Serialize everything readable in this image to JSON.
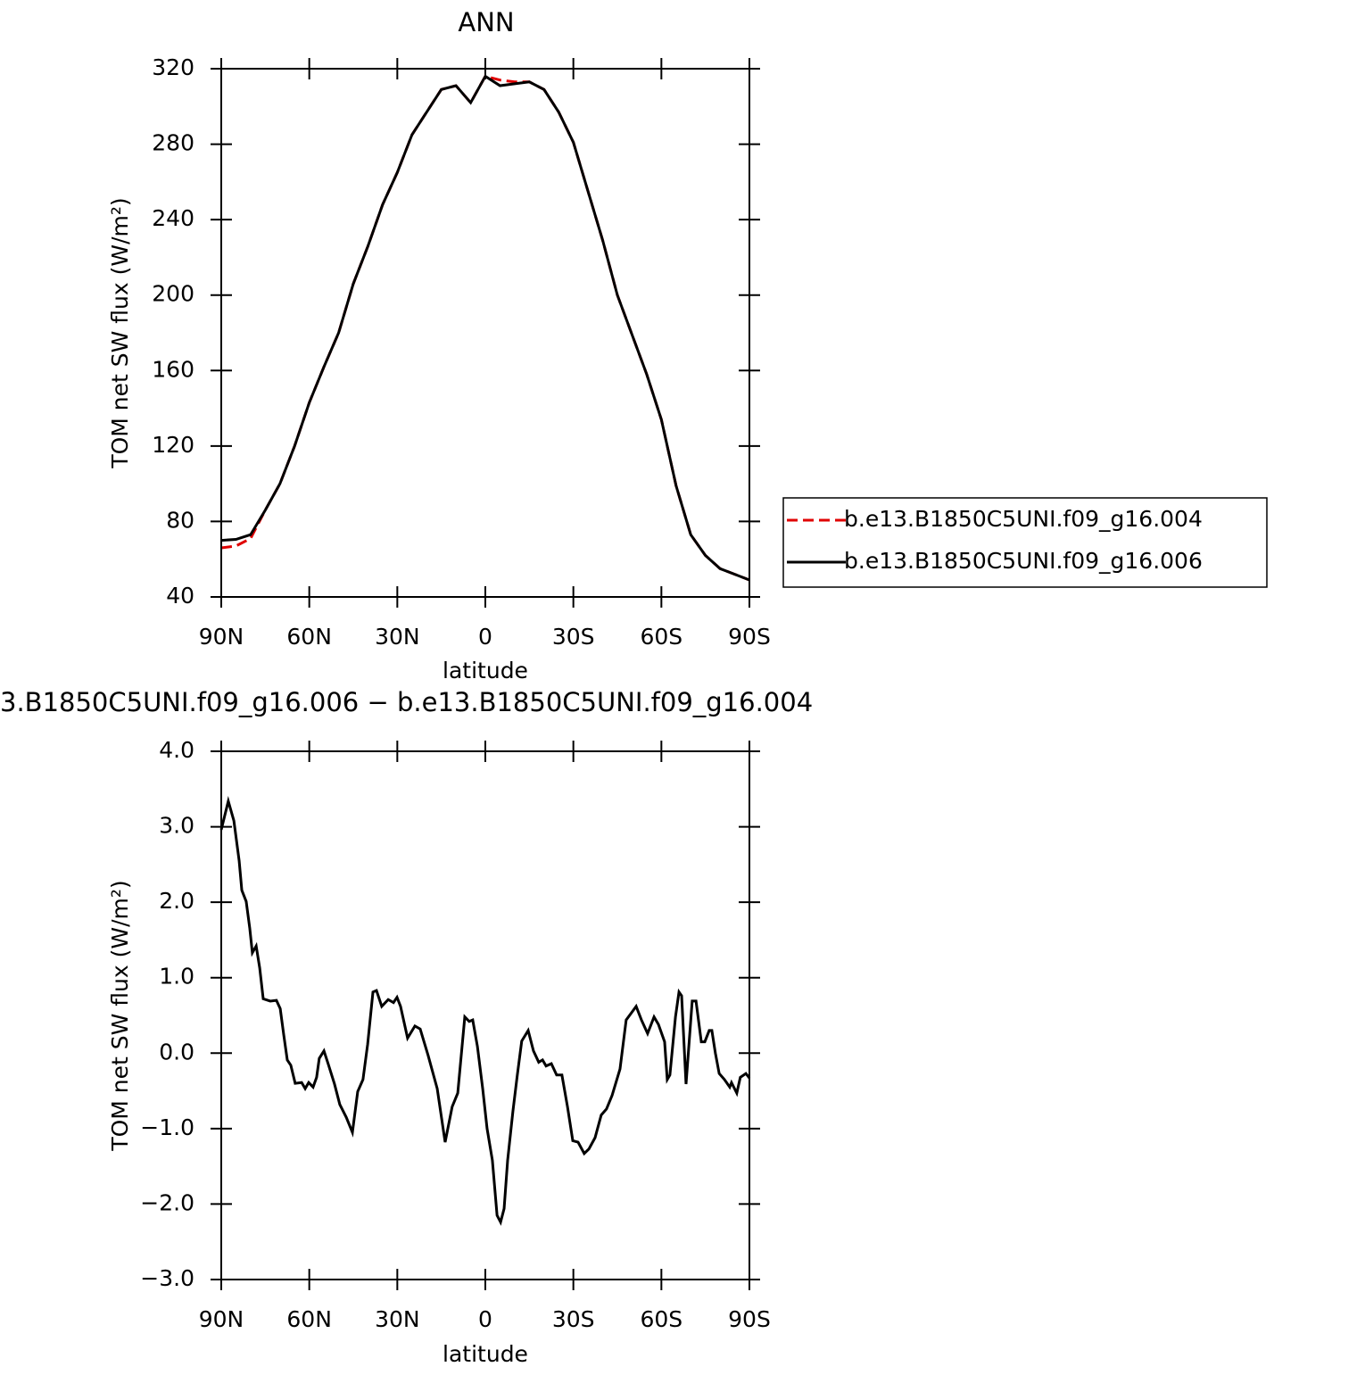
{
  "chart_data": [
    {
      "type": "line",
      "title": "ANN",
      "xlabel": "latitude",
      "ylabel": "TOM net SW flux (W/m²)",
      "xlim": [
        90,
        -90
      ],
      "xticks": [
        {
          "value": 90,
          "label": "90N"
        },
        {
          "value": 60,
          "label": "60N"
        },
        {
          "value": 30,
          "label": "30N"
        },
        0,
        {
          "value": -30,
          "label": "30S"
        },
        {
          "value": -60,
          "label": "60S"
        },
        {
          "value": -90,
          "label": "90S"
        }
      ],
      "ylim": [
        40,
        320
      ],
      "yticks": [
        40,
        80,
        120,
        160,
        200,
        240,
        280,
        320
      ],
      "legend": "right",
      "x": [
        90,
        85,
        80,
        75,
        70,
        65,
        60,
        55,
        50,
        45,
        40,
        35,
        30,
        25,
        20,
        15,
        10,
        5,
        0,
        -5,
        -10,
        -15,
        -20,
        -25,
        -30,
        -35,
        -40,
        -45,
        -50,
        -55,
        -60,
        -65,
        -70,
        -75,
        -80,
        -85,
        -90
      ],
      "series": [
        {
          "name": "b.e13.B1850C5UNI.f09_g16.004",
          "color": "#e00000",
          "line_style": "dashed",
          "values": [
            66,
            67,
            71,
            86,
            100,
            120,
            143,
            162,
            180,
            206,
            226,
            248,
            265,
            285,
            297,
            309,
            311,
            302,
            316,
            314,
            313,
            313,
            309,
            297,
            281,
            255,
            229,
            200,
            179,
            158,
            134,
            99,
            73,
            62,
            55,
            52,
            49
          ]
        },
        {
          "name": "b.e13.B1850C5UNI.f09_g16.006",
          "color": "#000000",
          "line_style": "solid",
          "values": [
            70,
            70.5,
            73,
            86,
            100,
            120,
            143,
            162,
            180,
            206,
            226,
            248,
            265,
            285,
            297,
            309,
            311,
            302,
            316,
            311,
            312,
            313,
            309,
            297,
            281,
            255,
            229,
            200,
            179,
            158,
            134,
            99,
            73,
            62,
            55,
            52,
            49
          ]
        }
      ]
    },
    {
      "type": "line",
      "title": "3.B1850C5UNI.f09_g16.006 − b.e13.B1850C5UNI.f09_g16.004",
      "xlabel": "latitude",
      "ylabel": "TOM net SW flux (W/m²)",
      "xlim": [
        90,
        -90
      ],
      "xticks": [
        {
          "value": 90,
          "label": "90N"
        },
        {
          "value": 60,
          "label": "60N"
        },
        {
          "value": 30,
          "label": "30N"
        },
        0,
        {
          "value": -30,
          "label": "30S"
        },
        {
          "value": -60,
          "label": "60S"
        },
        {
          "value": -90,
          "label": "90S"
        }
      ],
      "ylim": [
        -3,
        4
      ],
      "yticks": [
        {
          "value": -3,
          "label": "−3.0"
        },
        {
          "value": -2,
          "label": "−2.0"
        },
        {
          "value": -1,
          "label": "−1.0"
        },
        {
          "value": 0,
          "label": "0.0"
        },
        {
          "value": 1,
          "label": "1.0"
        },
        {
          "value": 2,
          "label": "2.0"
        },
        {
          "value": 3,
          "label": "3.0"
        },
        {
          "value": 4,
          "label": "4.0"
        }
      ],
      "x": [
        90,
        87.6,
        85.7,
        83.9,
        83,
        81.5,
        80.3,
        79.4,
        78.1,
        76.9,
        75.7,
        73.3,
        71.2,
        69.9,
        68.7,
        67.5,
        66.3,
        64.8,
        62.6,
        61.4,
        60.2,
        58.7,
        57.5,
        56.6,
        55,
        53.5,
        51.4,
        49.6,
        47.4,
        45.3,
        43.5,
        41.7,
        40.1,
        38.3,
        37.1,
        35.3,
        33.1,
        31.3,
        30.1,
        28.9,
        26.5,
        24,
        22.2,
        19.5,
        16.4,
        13.7,
        11.3,
        9.4,
        7,
        5.5,
        4.3,
        2.7,
        0.9,
        -0.6,
        -2.4,
        -4,
        -5.2,
        -6.4,
        -7.6,
        -9.4,
        -10.9,
        -12.4,
        -14.6,
        -16.4,
        -18.2,
        -19.5,
        -20.7,
        -22.5,
        -24.3,
        -26.1,
        -28,
        -29.8,
        -31.6,
        -33.7,
        -35.3,
        -37.4,
        -39.5,
        -41.3,
        -43.2,
        -45.9,
        -48,
        -49.9,
        -51.4,
        -53.2,
        -55.3,
        -57.5,
        -59,
        -61.1,
        -62,
        -62.9,
        -64.8,
        -66,
        -66.9,
        -68.4,
        -70.5,
        -71.8,
        -73.6,
        -74.8,
        -76.3,
        -77.2,
        -78.4,
        -79.7,
        -81.5,
        -83.3,
        -83.9,
        -85.7,
        -86.9,
        -88.8,
        -90
      ],
      "series": [
        {
          "color": "#000000",
          "line_style": "solid",
          "values": [
            2.96,
            3.34,
            3.08,
            2.55,
            2.16,
            2.01,
            1.66,
            1.33,
            1.42,
            1.13,
            0.72,
            0.69,
            0.7,
            0.59,
            0.24,
            -0.09,
            -0.16,
            -0.4,
            -0.39,
            -0.47,
            -0.39,
            -0.45,
            -0.32,
            -0.07,
            0.03,
            -0.15,
            -0.41,
            -0.68,
            -0.85,
            -1.05,
            -0.51,
            -0.35,
            0.12,
            0.81,
            0.83,
            0.62,
            0.71,
            0.67,
            0.74,
            0.62,
            0.2,
            0.36,
            0.32,
            -0.03,
            -0.47,
            -1.18,
            -0.71,
            -0.53,
            0.48,
            0.42,
            0.44,
            0.09,
            -0.47,
            -1,
            -1.42,
            -2.15,
            -2.24,
            -2.06,
            -1.42,
            -0.77,
            -0.29,
            0.16,
            0.3,
            0.03,
            -0.12,
            -0.09,
            -0.17,
            -0.14,
            -0.29,
            -0.29,
            -0.71,
            -1.16,
            -1.18,
            -1.33,
            -1.27,
            -1.12,
            -0.82,
            -0.74,
            -0.56,
            -0.21,
            0.44,
            0.54,
            0.62,
            0.44,
            0.26,
            0.48,
            0.38,
            0.15,
            -0.35,
            -0.29,
            0.48,
            0.81,
            0.76,
            -0.41,
            0.69,
            0.69,
            0.15,
            0.15,
            0.3,
            0.3,
            0,
            -0.27,
            -0.35,
            -0.45,
            -0.39,
            -0.53,
            -0.32,
            -0.27,
            -0.33
          ]
        }
      ]
    }
  ]
}
